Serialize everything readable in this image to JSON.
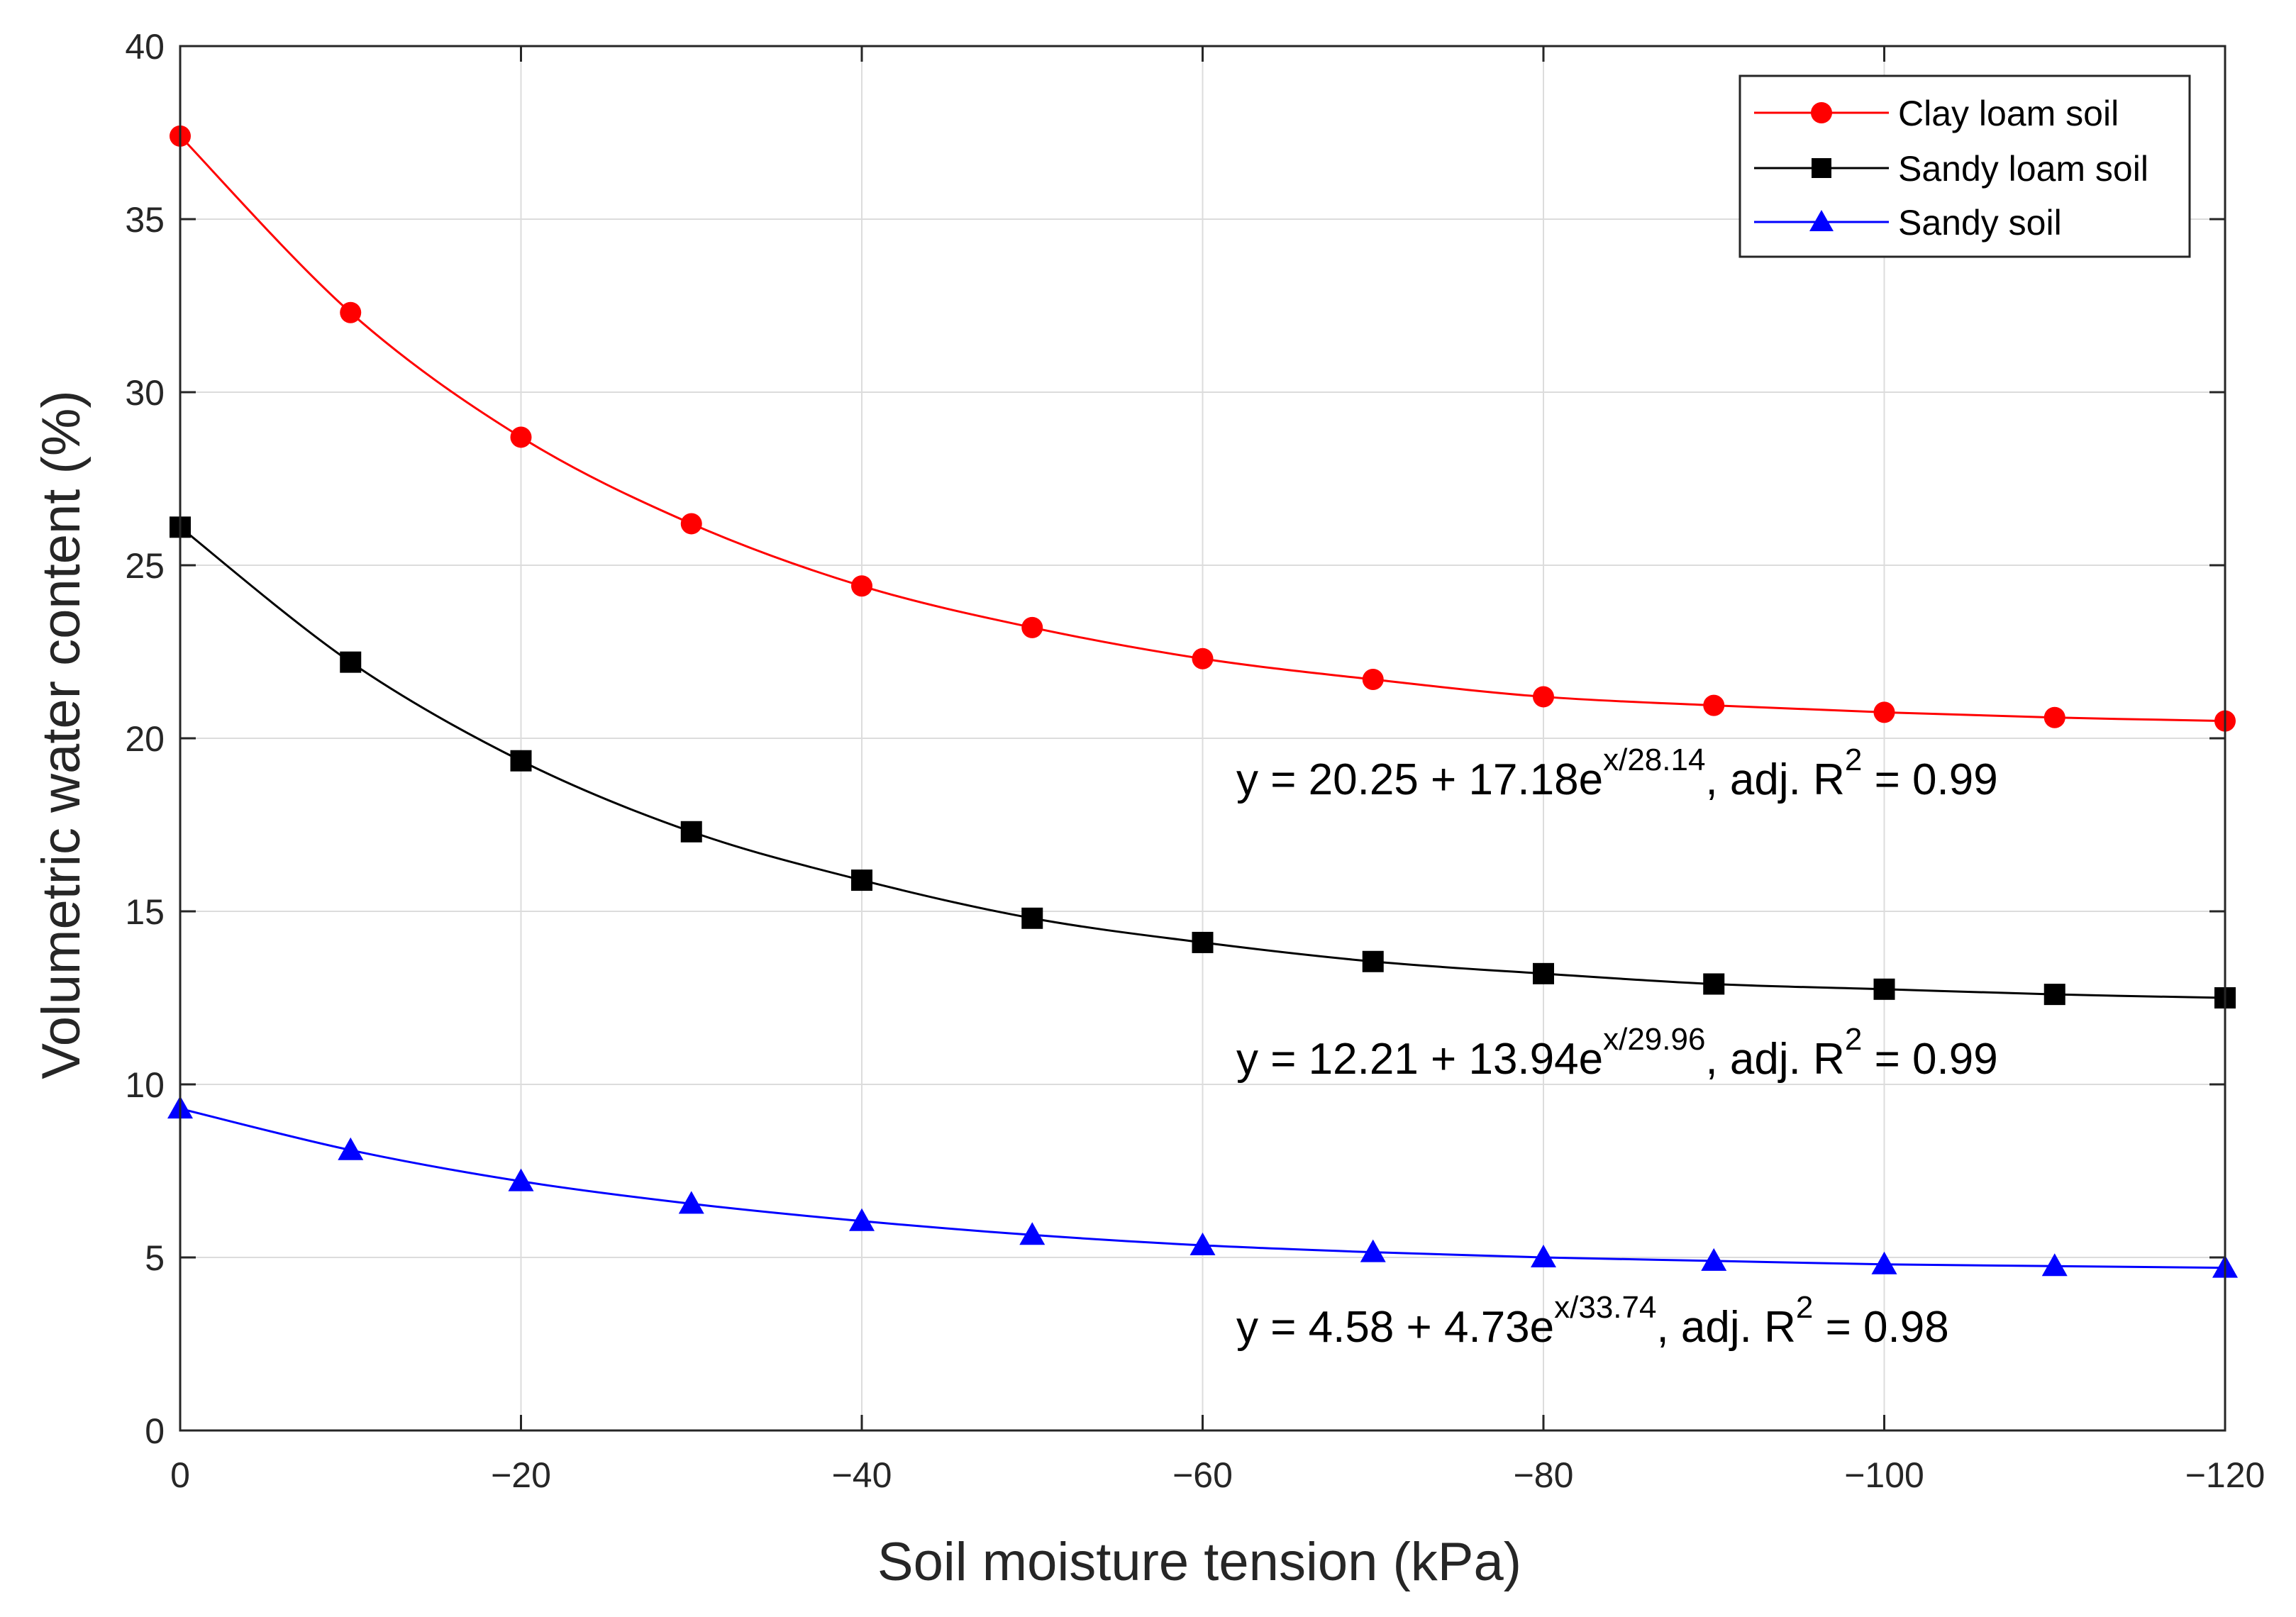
{
  "chart_data": {
    "type": "line",
    "title": "",
    "xlabel": "Soil moisture tension (kPa)",
    "ylabel": "Volumetric water content (%)",
    "xlim": [
      0,
      -120
    ],
    "ylim": [
      0,
      40
    ],
    "grid": true,
    "x_ticks": [
      0,
      -20,
      -40,
      -60,
      -80,
      -100,
      -120
    ],
    "x_tick_labels": [
      "0",
      "−20",
      "−40",
      "−60",
      "−80",
      "−100",
      "−120"
    ],
    "y_ticks": [
      0,
      5,
      10,
      15,
      20,
      25,
      30,
      35,
      40
    ],
    "y_tick_labels": [
      "0",
      "5",
      "10",
      "15",
      "20",
      "25",
      "30",
      "35",
      "40"
    ],
    "x": [
      0,
      -10,
      -20,
      -30,
      -40,
      -50,
      -60,
      -70,
      -80,
      -90,
      -100,
      -110,
      -120
    ],
    "series": [
      {
        "name": "Clay loam soil",
        "color": "#ff0000",
        "marker": "circle",
        "values": [
          37.4,
          32.3,
          28.7,
          26.2,
          24.4,
          23.2,
          22.3,
          21.7,
          21.2,
          20.95,
          20.75,
          20.6,
          20.5
        ]
      },
      {
        "name": "Sandy loam soil",
        "color": "#000000",
        "marker": "square",
        "values": [
          26.1,
          22.2,
          19.35,
          17.3,
          15.9,
          14.8,
          14.1,
          13.55,
          13.2,
          12.9,
          12.75,
          12.6,
          12.5
        ]
      },
      {
        "name": "Sandy soil",
        "color": "#0000ff",
        "marker": "triangle",
        "values": [
          9.3,
          8.1,
          7.2,
          6.55,
          6.05,
          5.65,
          5.35,
          5.15,
          5.0,
          4.9,
          4.8,
          4.75,
          4.7
        ]
      }
    ],
    "legend_position": "top-right",
    "annotations": [
      {
        "base": "y = 20.25 + 17.18e",
        "sup1": "x/28.14",
        "mid": ",  adj. R",
        "sup2": "2",
        "tail": " = 0.99"
      },
      {
        "base": "y = 12.21 + 13.94e",
        "sup1": "x/29.96",
        "mid": ",  adj. R",
        "sup2": "2",
        "tail": " = 0.99"
      },
      {
        "base": "y = 4.58 + 4.73e",
        "sup1": "x/33.74",
        "mid": ",  adj. R",
        "sup2": "2",
        "tail": " = 0.98"
      }
    ]
  }
}
